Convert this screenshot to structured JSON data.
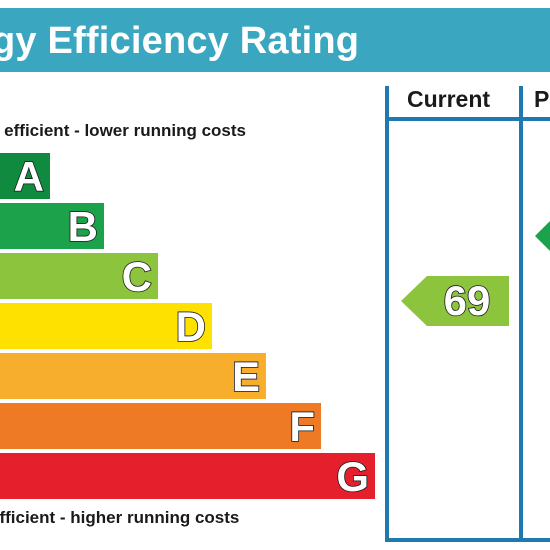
{
  "title": "gy Efficiency Rating",
  "columns": {
    "current": "Current",
    "potential": "P"
  },
  "captions": {
    "top": "y efficient - lower running costs",
    "bottom": " efficient - higher running costs"
  },
  "bands": [
    {
      "letter": "A",
      "color": "#0f8a3f"
    },
    {
      "letter": "B",
      "color": "#1ca24a"
    },
    {
      "letter": "C",
      "color": "#8cc43e"
    },
    {
      "letter": "D",
      "color": "#ffe100"
    },
    {
      "letter": "E",
      "color": "#f6ae2c"
    },
    {
      "letter": "F",
      "color": "#ef7a26"
    },
    {
      "letter": "G",
      "color": "#e5202c"
    }
  ],
  "current_rating": {
    "value": "69",
    "band": "C",
    "color": "#8cc43e"
  },
  "potential_rating": {
    "band": "B",
    "color": "#1ca24a"
  },
  "colors": {
    "title_bar": "#3aa6bf",
    "frame": "#1f79b0"
  }
}
